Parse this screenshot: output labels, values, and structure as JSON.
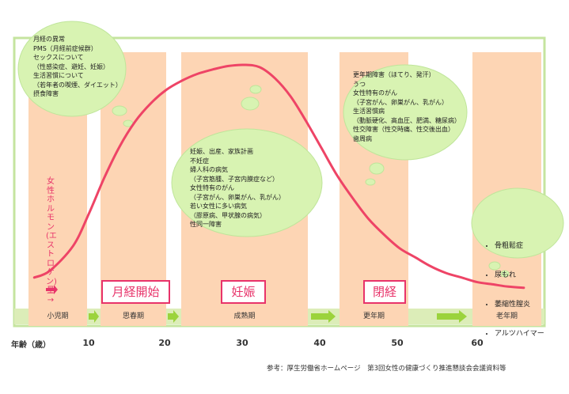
{
  "chart_data": {
    "type": "line",
    "x_axis_label": "年齢（歳）",
    "x_ticks": [
      10,
      20,
      30,
      40,
      50,
      60
    ],
    "xlim": [
      0,
      68
    ],
    "y_axis_label": "女性ホルモン(エストロゲン)量→",
    "series": [
      {
        "name": "",
        "x": [
          3,
          5,
          8,
          10,
          12,
          14,
          16,
          18,
          20,
          22,
          24,
          26,
          28,
          30,
          32,
          34,
          36,
          38,
          40,
          42,
          44,
          46,
          48,
          50,
          52,
          54,
          56,
          58,
          60,
          62,
          64,
          66
        ],
        "y": [
          0.06,
          0.09,
          0.2,
          0.34,
          0.5,
          0.64,
          0.75,
          0.83,
          0.89,
          0.93,
          0.96,
          0.98,
          0.995,
          1.0,
          0.99,
          0.94,
          0.86,
          0.75,
          0.63,
          0.51,
          0.41,
          0.32,
          0.25,
          0.19,
          0.15,
          0.11,
          0.08,
          0.06,
          0.04,
          0.03,
          0.02,
          0.015
        ],
        "color": "#ee4466"
      }
    ],
    "stages": [
      {
        "label": "小児期",
        "start": 0,
        "end": 8
      },
      {
        "label": "思春期",
        "start": 10,
        "end": 18
      },
      {
        "label": "成熟期",
        "start": 20,
        "end": 39
      },
      {
        "label": "更年期",
        "start": 40,
        "end": 49
      },
      {
        "label": "老年期",
        "start": 50,
        "end": 68
      }
    ],
    "events": [
      "月経開始",
      "妊娠",
      "閉経"
    ],
    "notes": {
      "puberty": "月経の異常\nPMS（月経前症候群）\nセックスについて\n（性感染症、避妊、妊娠）\n生活習慣について\n（若年者の喫煙、ダイエット）\n摂食障害",
      "maturity": "妊娠、出産、家族計画\n不妊症\n婦人科の病気\n（子宮筋腫、子宮内膜症など）\n女性特有のがん\n（子宮がん、卵巣がん、乳がん）\n若い女性に多い病気\n（膠原病、甲状腺の病気）\n性同一障害",
      "menopause": "更年期障害（ほてり、発汗）\nうつ\n女性特有のがん\n（子宮がん、卵巣がん、乳がん）\n生活習慣病\n（動脈硬化、高血圧、肥満、糖尿病）\n性交障害（性交時痛、性交後出血）\n歯周病",
      "elderly": [
        "骨粗鬆症",
        "尿もれ",
        "萎縮性膣炎",
        "アルツハイマー"
      ]
    },
    "source": "参考：厚生労働省ホームページ　第3回女性の健康づくり推進懇談会会議資料等"
  },
  "colors": {
    "band": "#fdd5b4",
    "bubble": "#d8f3b2",
    "bubble_stroke": "#bfe59a",
    "frame": "#c5e49f",
    "curve": "#ee4466",
    "arrow": "#9bd33c",
    "accent": "#e8336a"
  }
}
